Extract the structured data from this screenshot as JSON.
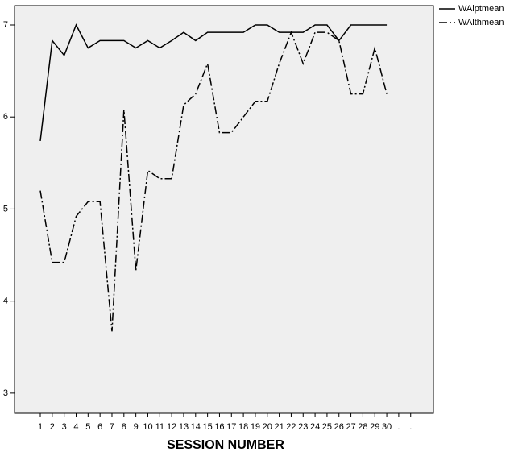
{
  "chart_data": {
    "type": "line",
    "x_label": "SESSION NUMBER",
    "categories": [
      "1",
      "2",
      "3",
      "4",
      "5",
      "6",
      "7",
      "8",
      "9",
      "10",
      "11",
      "12",
      "13",
      "14",
      "15",
      "16",
      "17",
      "18",
      "19",
      "20",
      "21",
      "22",
      "23",
      "24",
      "25",
      "26",
      "27",
      "28",
      "29",
      "30",
      ".",
      "."
    ],
    "series": [
      {
        "name": "WAlptmean",
        "color": "#000000",
        "line_style": "solid",
        "values": [
          5.74,
          6.83,
          6.67,
          7.0,
          6.75,
          6.83,
          6.83,
          6.83,
          6.75,
          6.83,
          6.75,
          6.83,
          6.92,
          6.83,
          6.92,
          6.92,
          6.92,
          6.92,
          7.0,
          7.0,
          6.92,
          6.92,
          6.92,
          7.0,
          7.0,
          6.83,
          7.0,
          7.0,
          7.0,
          7.0,
          null,
          null
        ]
      },
      {
        "name": "WAlthmean",
        "color": "#000000",
        "line_style": "dashdot",
        "values": [
          5.2,
          4.42,
          4.42,
          4.92,
          5.08,
          5.08,
          3.67,
          6.08,
          4.33,
          5.42,
          5.33,
          5.33,
          6.13,
          6.25,
          6.58,
          5.83,
          5.83,
          6.0,
          6.17,
          6.17,
          6.58,
          6.92,
          6.58,
          6.92,
          6.92,
          6.83,
          6.25,
          6.25,
          6.75,
          6.25,
          null,
          null
        ]
      }
    ],
    "ylim": [
      2.78,
      7.21
    ],
    "yticks": [
      3,
      4,
      5,
      6,
      7
    ],
    "grid": false,
    "legend": "outside-top-right"
  }
}
